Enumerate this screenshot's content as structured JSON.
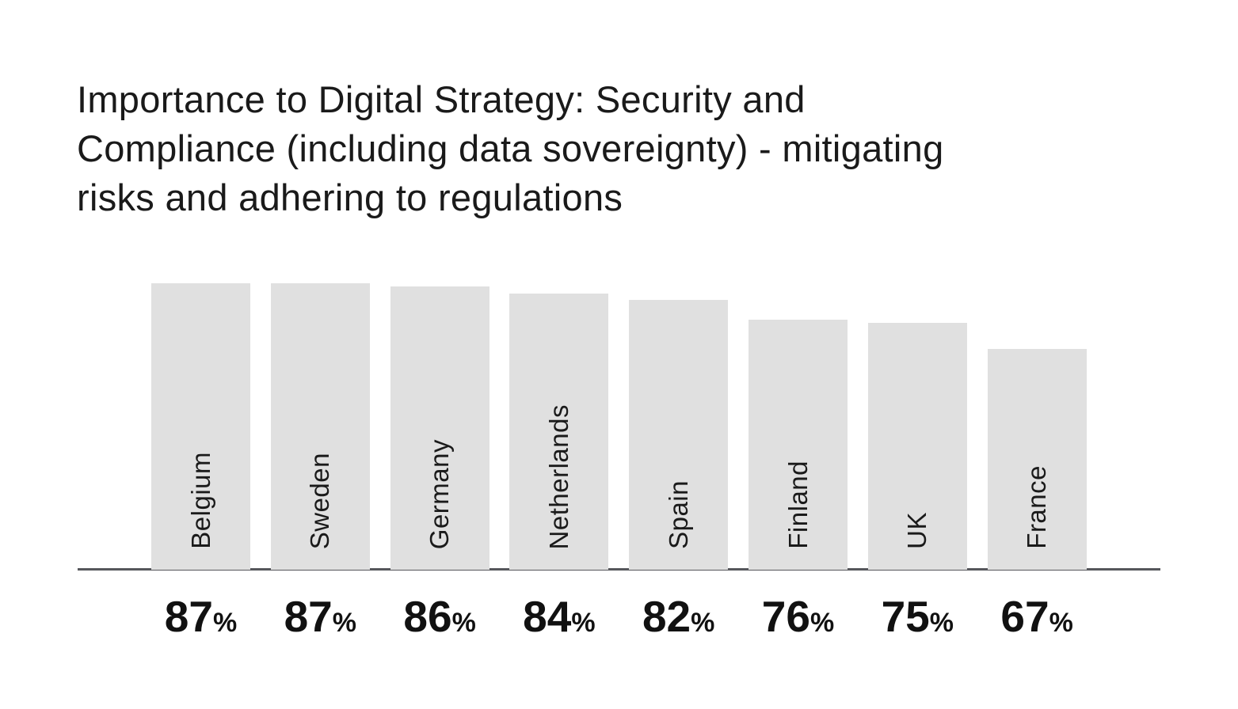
{
  "header": {
    "title_lines": [
      "Importance to Digital Strategy: Security and",
      "Compliance (including data sovereignty) - mitigating",
      "risks and adhering to regulations"
    ]
  },
  "chart_data": {
    "type": "bar",
    "orientation": "vertical",
    "title": "Importance to Digital Strategy: Security and Compliance (including data sovereignty) - mitigating risks and adhering to regulations",
    "categories": [
      "Belgium",
      "Sweden",
      "Germany",
      "Netherlands",
      "Spain",
      "Finland",
      "UK",
      "France"
    ],
    "values": [
      87,
      87,
      86,
      84,
      82,
      76,
      75,
      67
    ],
    "unit": "%",
    "xlabel": "",
    "ylabel": "",
    "ylim": [
      0,
      100
    ],
    "grid": false,
    "legend": null,
    "category_label_position": "inside-bottom-rotated",
    "value_label_position": "below-axis",
    "colors": {
      "bar_fill": "#e0e0e0",
      "axis_line": "#56575b",
      "title_text": "#1a1a1a",
      "category_text": "#1a1a1a",
      "value_text": "#111111",
      "background": "#ffffff"
    }
  }
}
